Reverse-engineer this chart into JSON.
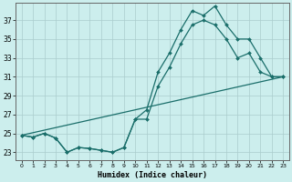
{
  "xlabel": "Humidex (Indice chaleur)",
  "background_color": "#cceeed",
  "grid_color": "#aacccc",
  "line_color": "#1a6e6a",
  "x_ticks": [
    0,
    1,
    2,
    3,
    4,
    5,
    6,
    7,
    8,
    9,
    10,
    11,
    12,
    13,
    14,
    15,
    16,
    17,
    18,
    19,
    20,
    21,
    22,
    23
  ],
  "y_ticks": [
    23,
    25,
    27,
    29,
    31,
    33,
    35,
    37
  ],
  "xlim": [
    -0.5,
    23.5
  ],
  "ylim": [
    22.2,
    38.8
  ],
  "line1_x": [
    0,
    1,
    2,
    3,
    4,
    5,
    6,
    7,
    8,
    9,
    10,
    11,
    12,
    13,
    14,
    15,
    16,
    17,
    18,
    19,
    20,
    21,
    22,
    23
  ],
  "line1_y": [
    24.8,
    24.6,
    25.0,
    24.5,
    23.0,
    23.5,
    23.4,
    23.2,
    23.0,
    23.5,
    26.5,
    27.5,
    31.5,
    33.5,
    36.0,
    38.0,
    37.5,
    38.5,
    36.5,
    35.0,
    35.0,
    33.0,
    31.0,
    31.0
  ],
  "line2_x": [
    0,
    1,
    2,
    3,
    4,
    5,
    6,
    7,
    8,
    9,
    10,
    11,
    12,
    13,
    14,
    15,
    16,
    17,
    18,
    19,
    20,
    21,
    22,
    23
  ],
  "line2_y": [
    24.8,
    24.6,
    25.0,
    24.5,
    23.0,
    23.5,
    23.4,
    23.2,
    23.0,
    23.5,
    26.5,
    26.5,
    30.0,
    32.0,
    34.5,
    36.5,
    37.0,
    36.5,
    35.0,
    33.0,
    33.5,
    31.5,
    31.0,
    31.0
  ],
  "line3_x": [
    0,
    23
  ],
  "line3_y": [
    24.8,
    31.0
  ]
}
